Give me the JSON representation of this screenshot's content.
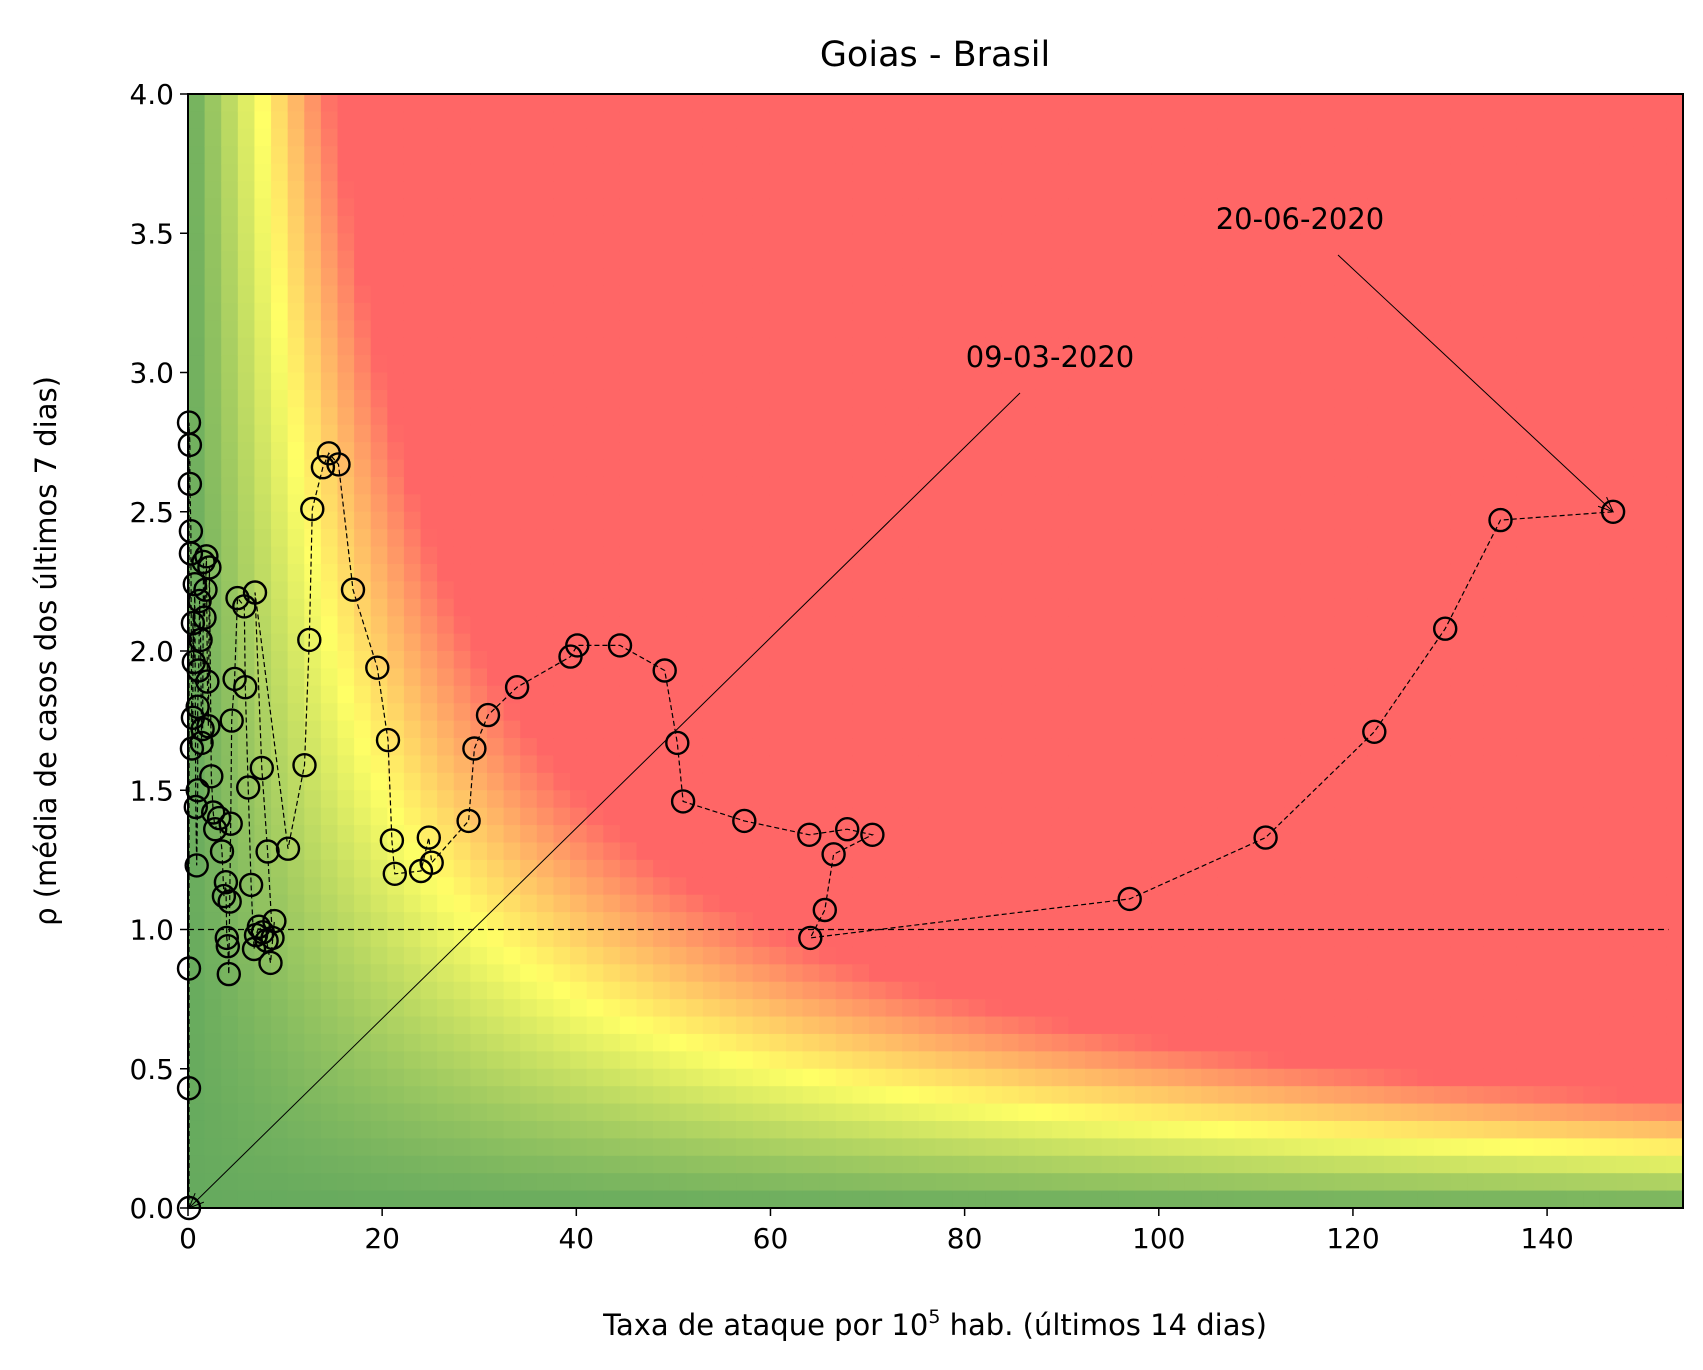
{
  "chart_data": {
    "type": "scatter",
    "title": "Goias - Brasil",
    "xlabel": {
      "prefix": "Taxa de ataque por 10",
      "sup": "5",
      "suffix": " hab. (últimos 14 dias)"
    },
    "ylabel": "ρ (média de casos dos últimos 7 dias)",
    "xlim": [
      0,
      154
    ],
    "ylim": [
      0,
      4
    ],
    "xticks": [
      0,
      20,
      40,
      60,
      80,
      100,
      120,
      140
    ],
    "yticks": [
      0.0,
      0.5,
      1.0,
      1.5,
      2.0,
      2.5,
      3.0,
      3.5,
      4.0
    ],
    "xtick_labels": [
      "0",
      "20",
      "40",
      "60",
      "80",
      "100",
      "120",
      "140"
    ],
    "ytick_labels": [
      "0.0",
      "0.5",
      "1.0",
      "1.5",
      "2.0",
      "2.5",
      "3.0",
      "3.5",
      "4.0"
    ],
    "reference_line_y": 1.0,
    "background": {
      "description": "risk gradient green-yellow-red as function of x*y",
      "colors": {
        "low": "#66aa5e",
        "mid": "#ffff66",
        "high": "#ff6666"
      }
    },
    "series": [
      {
        "marker": "circle-open",
        "line": "dashed",
        "x": [
          0.1,
          0.1,
          0.1,
          0.1,
          0.2,
          0.2,
          0.3,
          0.3,
          0.4,
          0.5,
          0.5,
          0.6,
          0.7,
          0.8,
          0.9,
          1.0,
          1.0,
          1.1,
          1.2,
          1.3,
          1.4,
          1.5,
          1.6,
          1.7,
          1.8,
          1.9,
          2.0,
          2.1,
          2.2,
          2.4,
          2.6,
          2.8,
          3.2,
          3.5,
          3.7,
          3.9,
          4.0,
          4.1,
          4.2,
          4.3,
          4.4,
          4.5,
          4.8,
          5.1,
          5.8,
          5.9,
          6.2,
          6.5,
          6.8,
          7.0,
          7.3,
          7.7,
          8.1,
          8.5,
          8.9,
          8.7,
          8.2,
          7.6,
          6.9,
          10.3,
          12.0,
          12.5,
          12.8,
          13.9,
          14.5,
          15.5,
          17.0,
          19.5,
          20.6,
          21.0,
          21.3,
          24.0,
          24.8,
          25.1,
          28.9,
          29.5,
          30.9,
          33.9,
          39.4,
          40.1,
          44.5,
          49.1,
          50.4,
          51.0,
          57.3,
          64.0,
          67.9,
          70.5,
          66.5,
          65.6,
          64.1,
          97.0,
          111.0,
          122.2,
          129.5,
          135.2,
          146.8
        ],
        "y": [
          0.0,
          0.43,
          0.86,
          2.82,
          2.74,
          2.6,
          2.43,
          2.35,
          1.65,
          1.76,
          2.1,
          1.96,
          2.24,
          1.44,
          1.23,
          1.5,
          1.8,
          1.93,
          2.18,
          2.04,
          1.67,
          1.72,
          2.32,
          2.12,
          2.22,
          2.34,
          1.89,
          1.73,
          2.3,
          1.55,
          1.42,
          1.36,
          1.4,
          1.28,
          1.12,
          1.17,
          0.97,
          0.94,
          0.84,
          1.1,
          1.38,
          1.75,
          1.9,
          2.19,
          2.16,
          1.87,
          1.51,
          1.16,
          0.93,
          0.98,
          1.01,
          0.99,
          0.96,
          0.88,
          1.03,
          0.97,
          1.28,
          1.58,
          2.21,
          1.29,
          1.59,
          2.04,
          2.51,
          2.66,
          2.71,
          2.67,
          2.22,
          1.94,
          1.68,
          1.32,
          1.2,
          1.21,
          1.33,
          1.24,
          1.39,
          1.65,
          1.77,
          1.87,
          1.98,
          2.02,
          2.02,
          1.93,
          1.67,
          1.46,
          1.39,
          1.34,
          1.36,
          1.34,
          1.27,
          1.07,
          0.97,
          1.11,
          1.33,
          1.71,
          2.08,
          2.47,
          2.5
        ]
      }
    ],
    "annotations": [
      {
        "text": "09-03-2020",
        "point": [
          0.1,
          0.0
        ]
      },
      {
        "text": "20-06-2020",
        "point": [
          146.8,
          2.5
        ]
      }
    ]
  }
}
